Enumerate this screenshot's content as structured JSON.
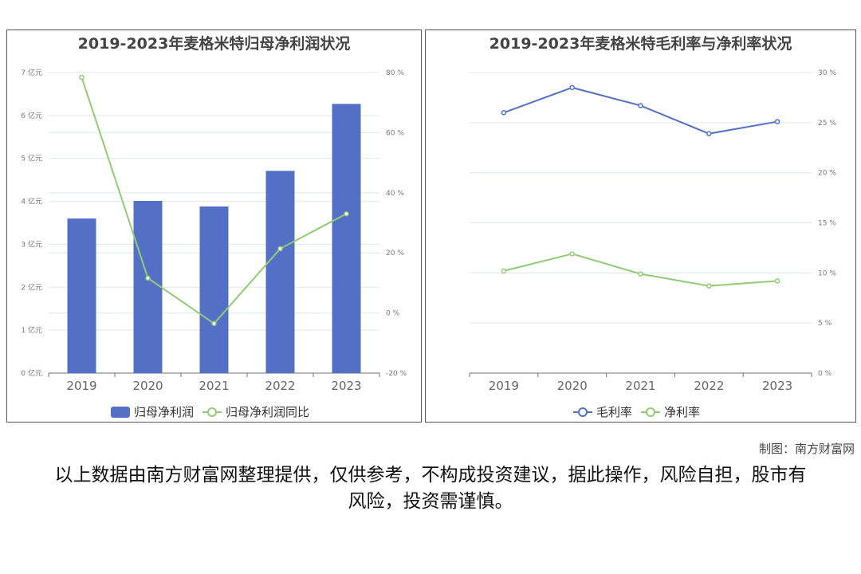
{
  "chart_data": [
    {
      "type": "bar",
      "title": "2019-2023年麦格米特归母净利润状况",
      "categories": [
        "2019",
        "2020",
        "2021",
        "2022",
        "2023"
      ],
      "series": [
        {
          "name": "归母净利润",
          "type": "bar",
          "axis": "left",
          "unit": "亿元",
          "values": [
            3.6,
            4.01,
            3.88,
            4.71,
            6.27
          ]
        },
        {
          "name": "归母净利润同比",
          "type": "line",
          "axis": "right",
          "unit": "%",
          "values": [
            78.4,
            11.6,
            -3.5,
            21.4,
            33.0
          ]
        }
      ],
      "y_left": {
        "ticks": [
          "0 亿元",
          "1 亿元",
          "2 亿元",
          "3 亿元",
          "4 亿元",
          "5 亿元",
          "6 亿元",
          "7 亿元"
        ],
        "range": [
          0,
          7
        ]
      },
      "y_right": {
        "ticks": [
          "-20 %",
          "0 %",
          "20 %",
          "40 %",
          "60 %",
          "80 %"
        ],
        "range": [
          -20,
          80
        ]
      },
      "legend": "bottom",
      "colors": {
        "bar": "#5470c6",
        "line": "#91cc75"
      }
    },
    {
      "type": "line",
      "title": "2019-2023年麦格米特毛利率与净利率状况",
      "categories": [
        "2019",
        "2020",
        "2021",
        "2022",
        "2023"
      ],
      "series": [
        {
          "name": "毛利率",
          "values": [
            26.0,
            28.5,
            26.7,
            23.9,
            25.1
          ]
        },
        {
          "name": "净利率",
          "values": [
            10.2,
            11.9,
            9.9,
            8.7,
            9.2
          ]
        }
      ],
      "y_right": {
        "ticks": [
          "0 %",
          "5 %",
          "10 %",
          "15 %",
          "20 %",
          "25 %",
          "30 %"
        ],
        "range": [
          0,
          30
        ]
      },
      "legend": "bottom",
      "colors": {
        "s0": "#5470c6",
        "s1": "#91cc75"
      }
    }
  ],
  "credit": "制图：南方财富网",
  "disclaimer": "以上数据由南方财富网整理提供，仅供参考，不构成投资建议，据此操作，风险自担，股市有风险，投资需谨慎。"
}
